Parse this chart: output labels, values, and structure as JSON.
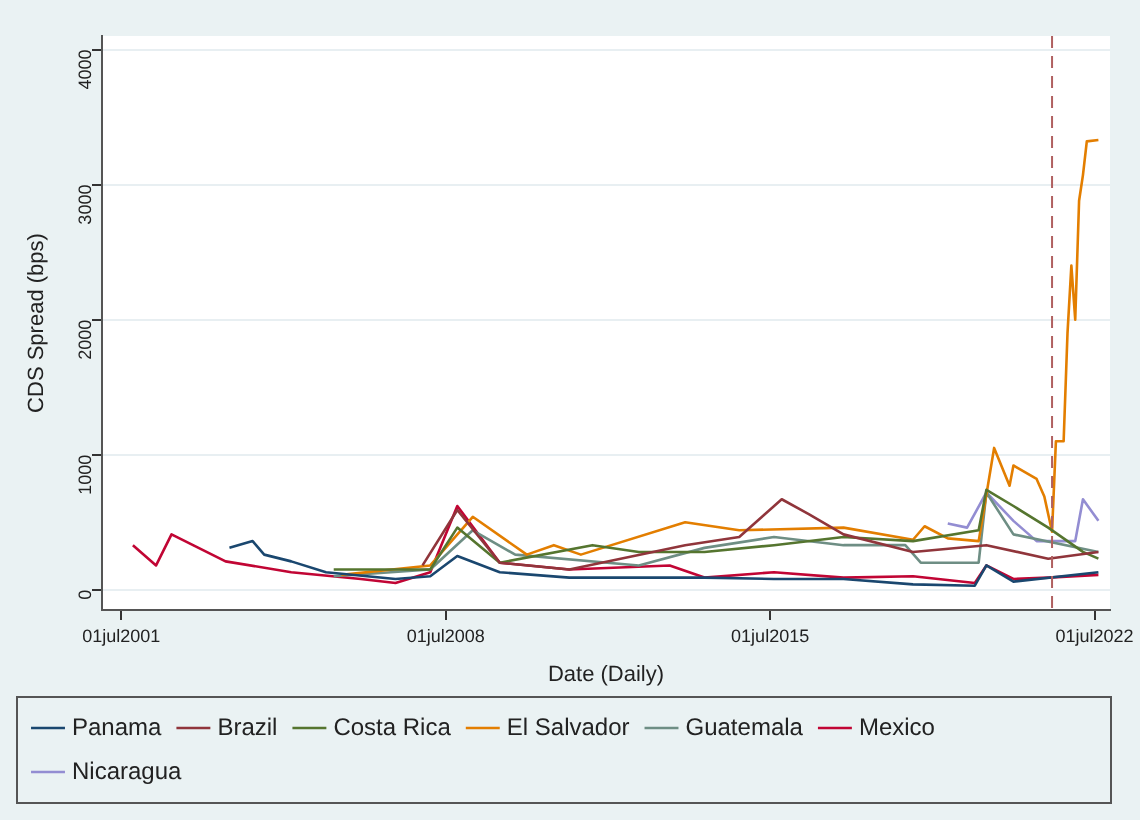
{
  "chart_data": {
    "type": "line",
    "xlabel": "Date (Daily)",
    "ylabel": "CDS Spread (bps)",
    "xlim": [
      "2001-02",
      "2022-11"
    ],
    "ylim": [
      -150,
      4100
    ],
    "xticks": [
      {
        "value": "2001-07-01",
        "label": "01jul2001"
      },
      {
        "value": "2008-07-01",
        "label": "01jul2008"
      },
      {
        "value": "2015-07-01",
        "label": "01jul2015"
      },
      {
        "value": "2022-07-01",
        "label": "01jul2022"
      }
    ],
    "yticks": [
      0,
      1000,
      2000,
      3000,
      4000
    ],
    "grid": "y",
    "legend": "bottom",
    "marker": "none",
    "line_style": "solid",
    "ref_lines": [
      {
        "axis": "x",
        "value": "2021-08",
        "label": null,
        "color": "#b06060",
        "line_style": "dashed"
      }
    ],
    "series": [
      {
        "name": "Panama",
        "color": "#1a476f",
        "x": [
          "2003-11",
          "2004-05",
          "2004-08",
          "2005-03",
          "2005-12",
          "2007-06",
          "2008-03",
          "2008-10",
          "2009-09",
          "2011-03",
          "2014-02",
          "2015-08",
          "2017-02",
          "2018-08",
          "2019-12",
          "2020-03",
          "2020-10",
          "2022-08"
        ],
        "values": [
          310,
          360,
          260,
          210,
          130,
          80,
          100,
          250,
          130,
          90,
          90,
          80,
          80,
          40,
          30,
          180,
          60,
          130
        ]
      },
      {
        "name": "Brazil",
        "color": "#90353b",
        "x": [
          "2008-01",
          "2008-10",
          "2009-09",
          "2011-03",
          "2013-09",
          "2014-11",
          "2015-10",
          "2016-05",
          "2017-02",
          "2018-08",
          "2020-03",
          "2021-07",
          "2022-08"
        ],
        "values": [
          180,
          590,
          200,
          150,
          330,
          390,
          670,
          560,
          410,
          280,
          330,
          230,
          280
        ]
      },
      {
        "name": "Costa Rica",
        "color": "#55752f",
        "x": [
          "2006-02",
          "2008-03",
          "2008-10",
          "2009-09",
          "2011-09",
          "2012-09",
          "2014-02",
          "2015-08",
          "2017-02",
          "2018-08",
          "2020-01",
          "2020-03",
          "2020-10",
          "2021-07",
          "2022-04",
          "2022-08"
        ],
        "values": [
          150,
          150,
          460,
          200,
          330,
          280,
          280,
          330,
          390,
          360,
          440,
          740,
          620,
          460,
          280,
          230
        ]
      },
      {
        "name": "El Salvador",
        "color": "#e37e00",
        "x": [
          "2006-04",
          "2008-03",
          "2009-02",
          "2010-04",
          "2010-11",
          "2011-06",
          "2013-09",
          "2014-11",
          "2017-02",
          "2018-08",
          "2018-11",
          "2019-05",
          "2020-01",
          "2020-05",
          "2020-09",
          "2020-10",
          "2021-04",
          "2021-06",
          "2021-08",
          "2021-09",
          "2021-11",
          "2021-12",
          "2022-01",
          "2022-02",
          "2022-03",
          "2022-04",
          "2022-05",
          "2022-08"
        ],
        "values": [
          110,
          180,
          540,
          260,
          330,
          260,
          500,
          440,
          460,
          370,
          470,
          380,
          360,
          1050,
          770,
          920,
          820,
          690,
          430,
          1100,
          1100,
          1900,
          2400,
          2000,
          2880,
          3070,
          3320,
          3330
        ]
      },
      {
        "name": "Guatemala",
        "color": "#6e8e84",
        "x": [
          "2006-02",
          "2008-03",
          "2009-02",
          "2010-01",
          "2012-09",
          "2014-02",
          "2015-08",
          "2017-02",
          "2018-06",
          "2018-10",
          "2020-01",
          "2020-03",
          "2020-10",
          "2022-08"
        ],
        "values": [
          100,
          150,
          440,
          260,
          180,
          310,
          390,
          330,
          330,
          200,
          200,
          720,
          410,
          280
        ]
      },
      {
        "name": "Mexico",
        "color": "#c10534",
        "x": [
          "2001-10",
          "2002-04",
          "2002-08",
          "2003-10",
          "2005-03",
          "2006-09",
          "2007-06",
          "2008-03",
          "2008-10",
          "2009-09",
          "2011-03",
          "2013-05",
          "2014-02",
          "2015-08",
          "2017-02",
          "2018-08",
          "2019-12",
          "2020-03",
          "2020-10",
          "2021-07",
          "2022-08"
        ],
        "values": [
          330,
          180,
          410,
          210,
          130,
          80,
          50,
          130,
          620,
          200,
          150,
          180,
          90,
          130,
          90,
          100,
          50,
          180,
          80,
          90,
          110
        ]
      },
      {
        "name": "Nicaragua",
        "color": "#938dd2",
        "x": [
          "2019-05",
          "2019-10",
          "2020-03",
          "2020-10",
          "2021-04",
          "2022-02",
          "2022-04",
          "2022-08"
        ],
        "values": [
          490,
          460,
          720,
          510,
          360,
          360,
          670,
          510
        ]
      }
    ]
  }
}
